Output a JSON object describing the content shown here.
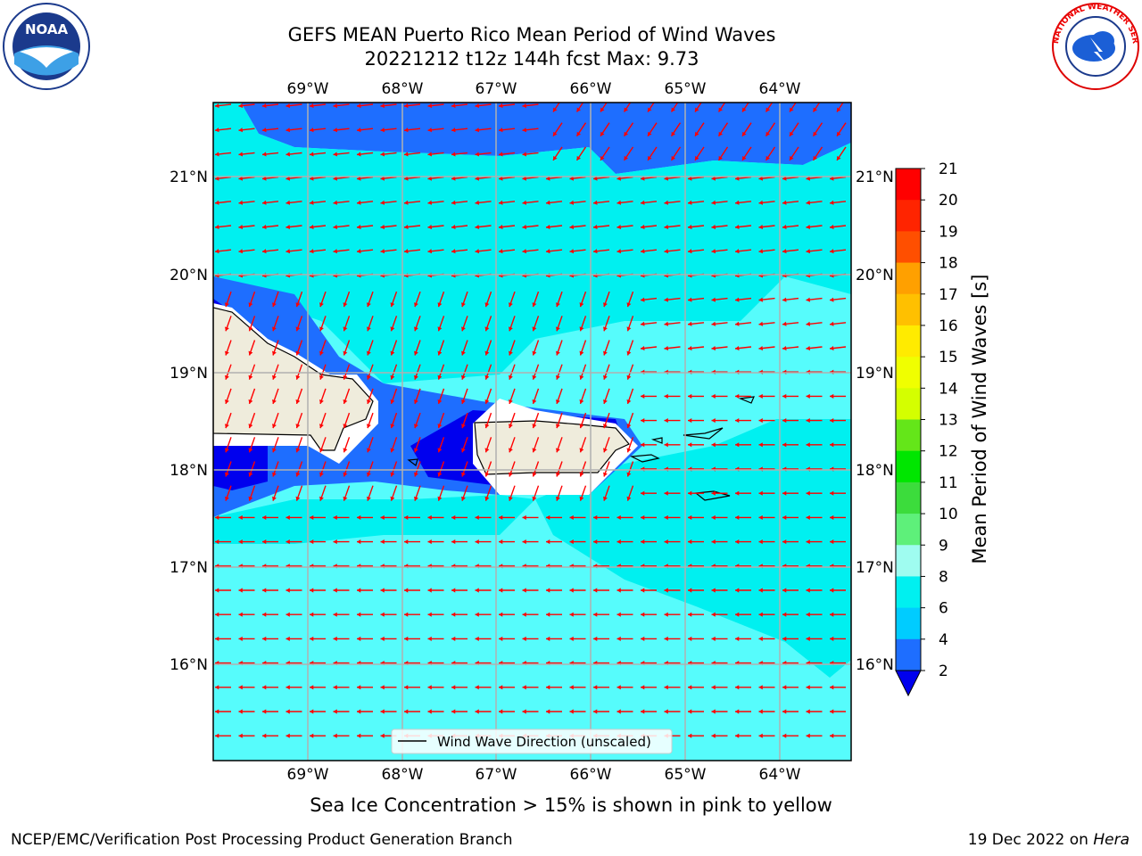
{
  "header": {
    "title_line1": "GEFS MEAN Puerto Rico Mean Period of Wind Waves",
    "title_line2": "20221212 t12z 144h fcst   Max: 9.73"
  },
  "logos": {
    "left": {
      "icon": "noaa-logo-icon",
      "text": "NOAA"
    },
    "right": {
      "icon": "nws-logo-icon",
      "text": "NATIONAL WEATHER SERVICE"
    }
  },
  "map": {
    "lon_labels": [
      "69°W",
      "68°W",
      "67°W",
      "66°W",
      "65°W",
      "64°W"
    ],
    "lat_labels": [
      "21°N",
      "20°N",
      "19°N",
      "18°N",
      "17°N",
      "16°N"
    ],
    "legend_label": "Wind Wave Direction (unscaled)",
    "arrow_color": "#ff0000",
    "land_color": "#efecdc"
  },
  "colorbar": {
    "title": "Mean Period of Wind Waves [s]",
    "tick_labels": [
      "21",
      "20",
      "19",
      "18",
      "17",
      "16",
      "15",
      "14",
      "13",
      "12",
      "11",
      "10",
      "9",
      "8",
      "6",
      "4",
      "2"
    ],
    "colors": [
      "#ff0000",
      "#ff2400",
      "#ff4f00",
      "#ff7b00",
      "#ffa000",
      "#ffc000",
      "#ffeb00",
      "#f0ff00",
      "#d4ff00",
      "#b2ff00",
      "#64e619",
      "#00e600",
      "#3cdc3c",
      "#5ef07a",
      "#9ffcf0",
      "#56fcfc",
      "#00f0f0",
      "#00ccff",
      "#1e6eff",
      "#0000ee"
    ]
  },
  "footer": {
    "note": "Sea Ice Concentration > 15% is shown in pink to yellow",
    "left": "NCEP/EMC/Verification Post Processing Product Generation Branch",
    "right_date": "19 Dec 2022 on",
    "right_host": "Hera"
  }
}
